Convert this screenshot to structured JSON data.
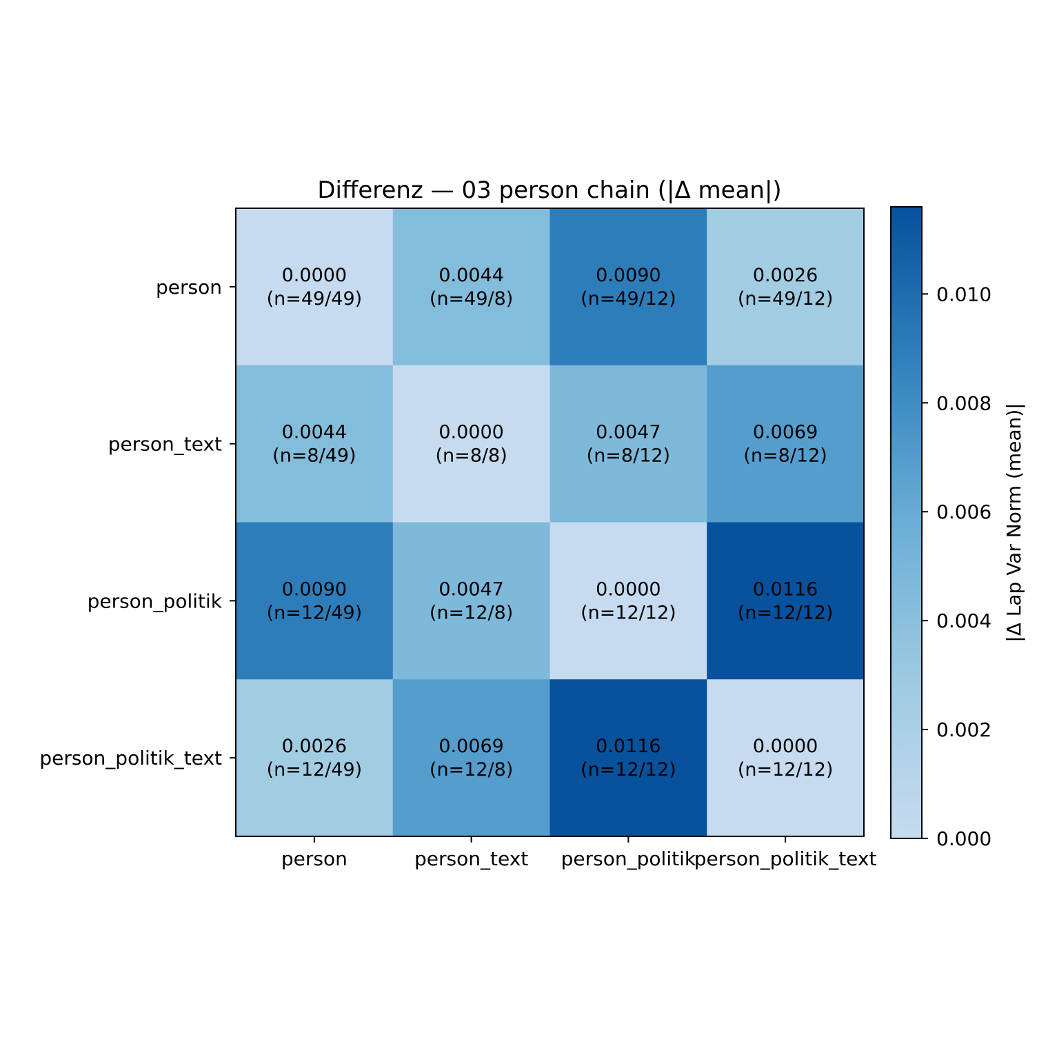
{
  "chart_data": {
    "type": "heatmap",
    "title": "Differenz — 03 person chain (|Δ mean|)",
    "rows": [
      "person",
      "person_text",
      "person_politik",
      "person_politik_text"
    ],
    "cols": [
      "person",
      "person_text",
      "person_politik",
      "person_politik_text"
    ],
    "values": [
      [
        0.0,
        0.0044,
        0.009,
        0.0026
      ],
      [
        0.0044,
        0.0,
        0.0047,
        0.0069
      ],
      [
        0.009,
        0.0047,
        0.0,
        0.0116
      ],
      [
        0.0026,
        0.0069,
        0.0116,
        0.0
      ]
    ],
    "value_labels": [
      [
        "0.0000",
        "0.0044",
        "0.0090",
        "0.0026"
      ],
      [
        "0.0044",
        "0.0000",
        "0.0047",
        "0.0069"
      ],
      [
        "0.0090",
        "0.0047",
        "0.0000",
        "0.0116"
      ],
      [
        "0.0026",
        "0.0069",
        "0.0116",
        "0.0000"
      ]
    ],
    "n_labels": [
      [
        "(n=49/49)",
        "(n=49/8)",
        "(n=49/12)",
        "(n=49/12)"
      ],
      [
        "(n=8/49)",
        "(n=8/8)",
        "(n=8/12)",
        "(n=8/12)"
      ],
      [
        "(n=12/49)",
        "(n=12/8)",
        "(n=12/12)",
        "(n=12/12)"
      ],
      [
        "(n=12/49)",
        "(n=12/8)",
        "(n=12/12)",
        "(n=12/12)"
      ]
    ],
    "colorbar": {
      "label": "|Δ Lap Var Norm (mean)|",
      "range": [
        0.0,
        0.0116
      ],
      "ticks": [
        0.0,
        0.002,
        0.004,
        0.006,
        0.008,
        0.01
      ],
      "tick_labels": [
        "0.000",
        "0.002",
        "0.004",
        "0.006",
        "0.008",
        "0.010"
      ],
      "colormap_low": "#c6dbef",
      "colormap_high": "#08519c"
    }
  }
}
